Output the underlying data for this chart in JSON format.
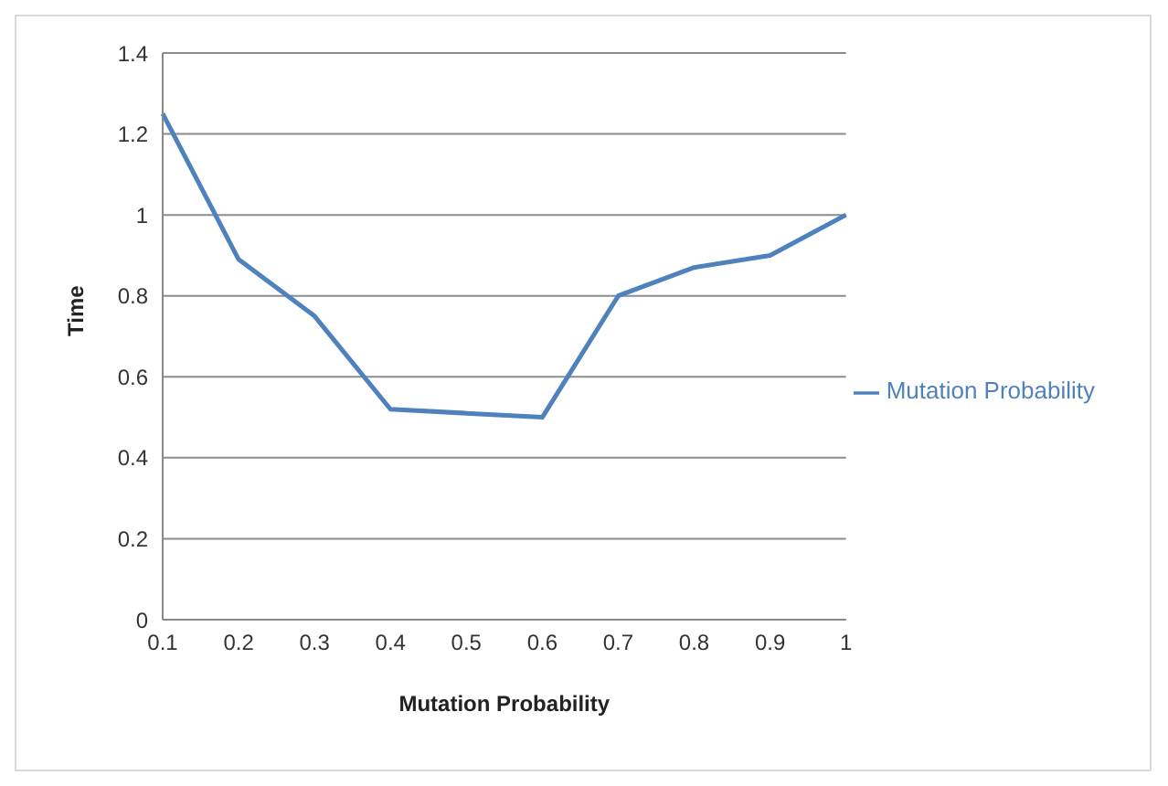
{
  "chart_data": {
    "type": "line",
    "xlabel": "Mutation Probability",
    "ylabel": "Time",
    "categories": [
      "0.1",
      "0.2",
      "0.3",
      "0.4",
      "0.5",
      "0.6",
      "0.7",
      "0.8",
      "0.9",
      "1"
    ],
    "series": [
      {
        "name": "Mutation Probability",
        "color": "#4f81bd",
        "values": [
          1.25,
          0.89,
          0.75,
          0.52,
          0.51,
          0.5,
          0.8,
          0.87,
          0.9,
          1.0
        ]
      }
    ],
    "ylim": [
      0,
      1.4
    ],
    "yticks": [
      0,
      0.2,
      0.4,
      0.6,
      0.8,
      1,
      1.2,
      1.4
    ],
    "grid": "y",
    "legend": "right",
    "marker": "none"
  }
}
